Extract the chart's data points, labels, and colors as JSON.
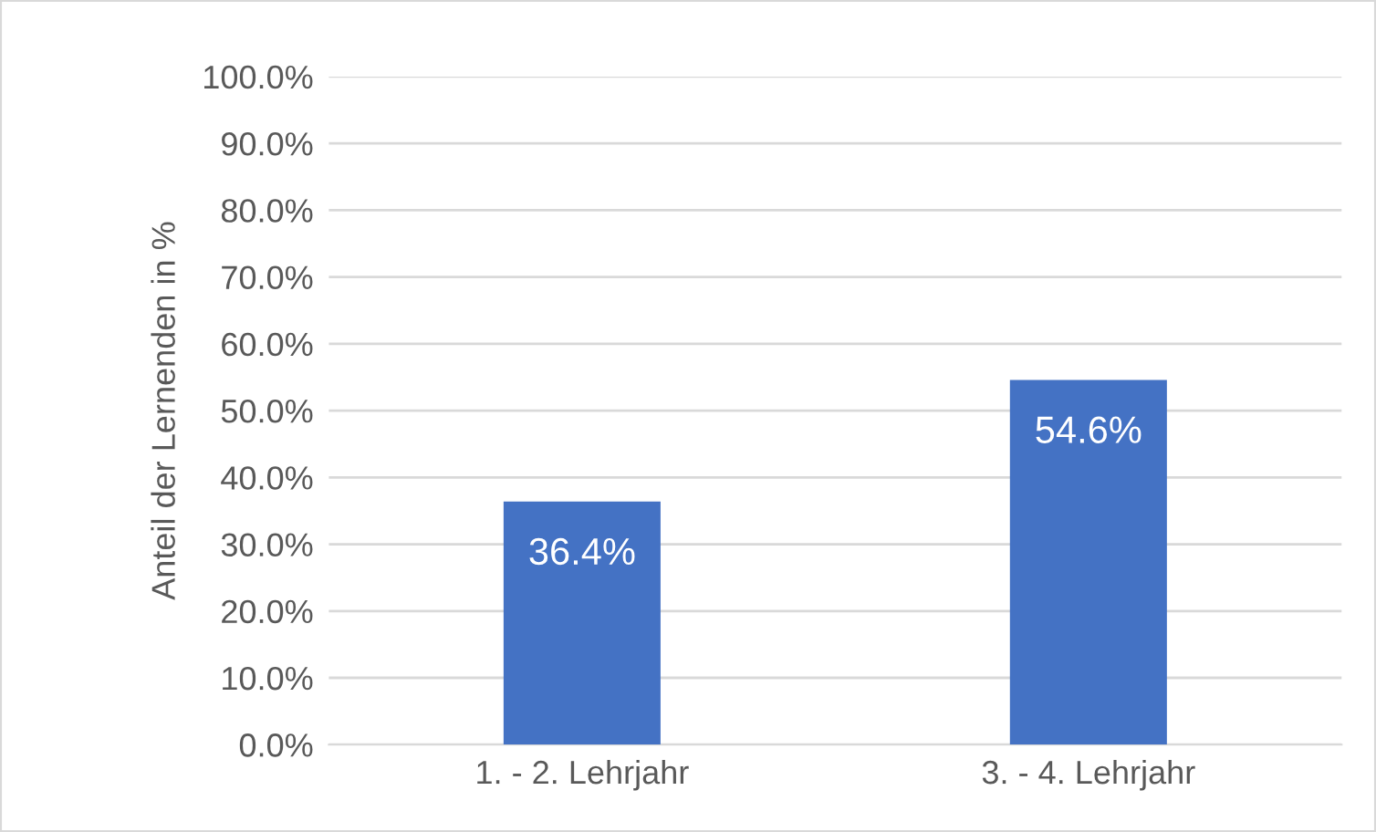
{
  "chart_data": {
    "type": "bar",
    "ylabel": "Anteil der Lernenden in %",
    "categories": [
      "1. - 2. Lehrjahr",
      "3. - 4. Lehrjahr"
    ],
    "values": [
      36.4,
      54.6
    ],
    "color": "#4472c4",
    "value_labels": [
      "36.4%",
      "54.6%"
    ],
    "ylim": [
      0,
      100
    ],
    "yticks": [
      {
        "value": 0,
        "label": "0.0%"
      },
      {
        "value": 10,
        "label": "10.0%"
      },
      {
        "value": 20,
        "label": "20.0%"
      },
      {
        "value": 30,
        "label": "30.0%"
      },
      {
        "value": 40,
        "label": "40.0%"
      },
      {
        "value": 50,
        "label": "50.0%"
      },
      {
        "value": 60,
        "label": "60.0%"
      },
      {
        "value": 70,
        "label": "70.0%"
      },
      {
        "value": 80,
        "label": "80.0%"
      },
      {
        "value": 90,
        "label": "90.0%"
      },
      {
        "value": 100,
        "label": "100.0%"
      }
    ],
    "grid": "y"
  }
}
